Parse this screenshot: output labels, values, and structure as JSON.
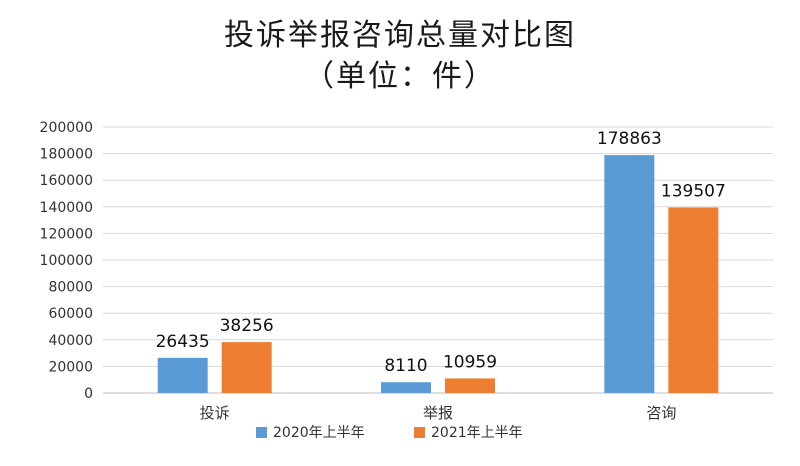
{
  "chart_data": {
    "type": "bar",
    "title": "投诉举报咨询总量对比图",
    "subtitle": "（单位：件）",
    "categories": [
      "投诉",
      "举报",
      "咨询"
    ],
    "series": [
      {
        "name": "2020年上半年",
        "values": [
          26435,
          8110,
          178863
        ],
        "color": "#5b9bd5"
      },
      {
        "name": "2021年上半年",
        "values": [
          38256,
          10959,
          139507
        ],
        "color": "#ed7d31"
      }
    ],
    "ylim": [
      0,
      200000
    ],
    "ytick_step": 20000,
    "yticks": [
      "0",
      "20000",
      "40000",
      "60000",
      "80000",
      "100000",
      "120000",
      "140000",
      "160000",
      "180000",
      "200000"
    ],
    "grid": true,
    "legend_position": "bottom"
  }
}
